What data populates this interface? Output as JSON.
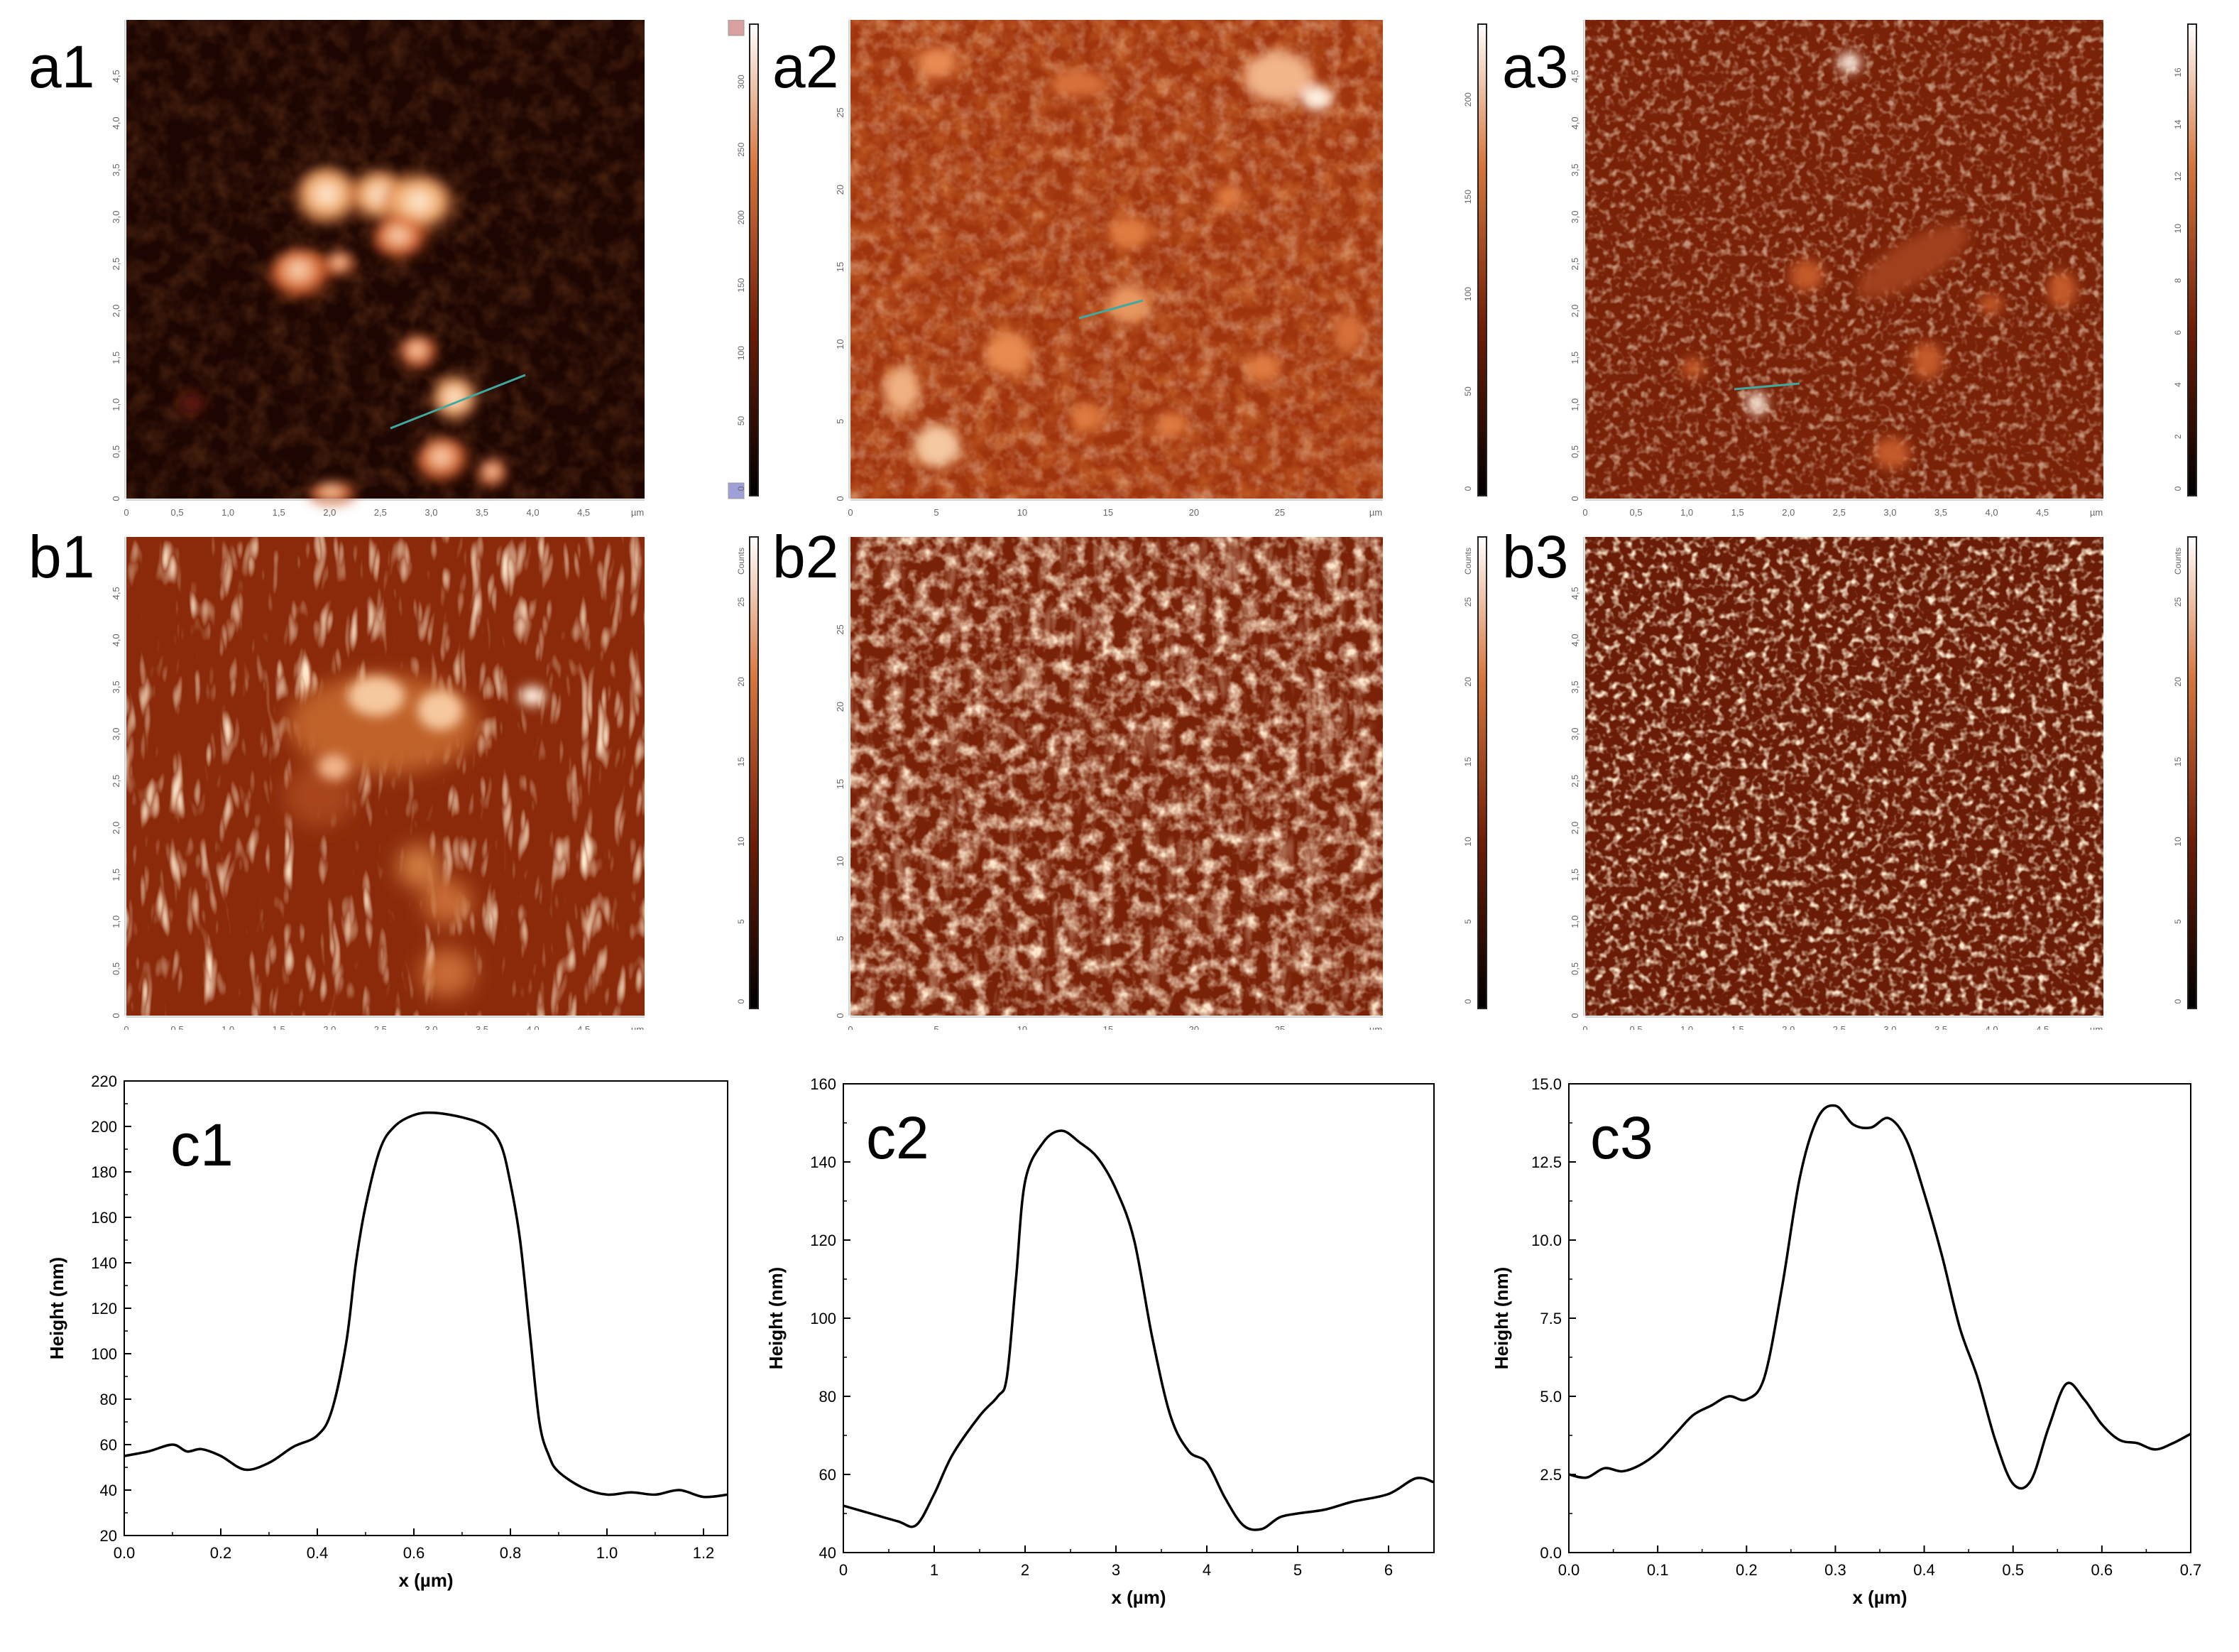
{
  "panels": {
    "a1": "a1",
    "a2": "a2",
    "a3": "a3",
    "b1": "b1",
    "b2": "b2",
    "b3": "b3",
    "c1": "c1",
    "c2": "c2",
    "c3": "c3"
  },
  "afm_axes": {
    "small_scan_ticks": [
      "0",
      "0,5",
      "1,0",
      "1,5",
      "2,0",
      "2,5",
      "3,0",
      "3,5",
      "4,0",
      "4,5"
    ],
    "large_scan_ticks": [
      "0",
      "5",
      "10",
      "15",
      "20",
      "25"
    ],
    "unit": "µm"
  },
  "colorbars": {
    "a1": [
      "0",
      "50",
      "100",
      "150",
      "200",
      "250",
      "300"
    ],
    "a2": [
      "0",
      "50",
      "100",
      "150",
      "200"
    ],
    "a3": [
      "0",
      "2",
      "4",
      "6",
      "8",
      "10",
      "12",
      "14",
      "16"
    ],
    "b": [
      "0",
      "5",
      "10",
      "15",
      "20",
      "25"
    ],
    "b_unit": "Counts"
  },
  "colors": {
    "afm_dark": "#1a0500",
    "afm_mid": "#8a2a0a",
    "afm_light": "#f2b07a",
    "afm_white": "#fff3e6",
    "profile_line": "#000000",
    "scan_line": "#3fa9a0"
  },
  "chart_data": [
    {
      "type": "line",
      "panel": "c1",
      "xlabel": "x (µm)",
      "ylabel": "Height (nm)",
      "xlim": [
        0.0,
        1.25
      ],
      "ylim": [
        20,
        220
      ],
      "xticks": [
        "0.0",
        "0.2",
        "0.4",
        "0.6",
        "0.8",
        "1.0",
        "1.2"
      ],
      "yticks": [
        "20",
        "40",
        "60",
        "80",
        "100",
        "120",
        "140",
        "160",
        "180",
        "200",
        "220"
      ],
      "x": [
        0.0,
        0.05,
        0.1,
        0.13,
        0.16,
        0.2,
        0.25,
        0.3,
        0.35,
        0.4,
        0.43,
        0.46,
        0.48,
        0.5,
        0.53,
        0.56,
        0.6,
        0.64,
        0.7,
        0.75,
        0.78,
        0.8,
        0.82,
        0.84,
        0.86,
        0.88,
        0.9,
        0.95,
        1.0,
        1.05,
        1.1,
        1.15,
        1.2,
        1.25
      ],
      "y": [
        55,
        57,
        60,
        57,
        58,
        55,
        49,
        52,
        59,
        64,
        75,
        105,
        140,
        165,
        190,
        200,
        205,
        206,
        204,
        200,
        192,
        175,
        150,
        110,
        70,
        55,
        48,
        41,
        38,
        39,
        38,
        40,
        37,
        38
      ]
    },
    {
      "type": "line",
      "panel": "c2",
      "xlabel": "x (µm)",
      "ylabel": "Height (nm)",
      "xlim": [
        0,
        6.5
      ],
      "ylim": [
        40,
        160
      ],
      "xticks": [
        "0",
        "1",
        "2",
        "3",
        "4",
        "5",
        "6"
      ],
      "yticks": [
        "40",
        "60",
        "80",
        "100",
        "120",
        "140",
        "160"
      ],
      "x": [
        0.0,
        0.3,
        0.6,
        0.8,
        1.0,
        1.2,
        1.5,
        1.7,
        1.8,
        1.9,
        2.0,
        2.2,
        2.4,
        2.6,
        2.8,
        3.0,
        3.2,
        3.4,
        3.6,
        3.8,
        4.0,
        4.2,
        4.4,
        4.6,
        4.8,
        5.0,
        5.3,
        5.6,
        6.0,
        6.3,
        6.5
      ],
      "y": [
        52,
        50,
        48,
        47,
        55,
        65,
        75,
        80,
        85,
        110,
        135,
        145,
        148,
        145,
        141,
        133,
        120,
        95,
        75,
        66,
        63,
        54,
        47,
        46,
        49,
        50,
        51,
        53,
        55,
        59,
        58
      ]
    },
    {
      "type": "line",
      "panel": "c3",
      "xlabel": "x (µm)",
      "ylabel": "Height (nm)",
      "xlim": [
        0.0,
        0.7
      ],
      "ylim": [
        0.0,
        15.0
      ],
      "xticks": [
        "0.0",
        "0.1",
        "0.2",
        "0.3",
        "0.4",
        "0.5",
        "0.6",
        "0.7"
      ],
      "yticks": [
        "0.0",
        "2.5",
        "5.0",
        "7.5",
        "10.0",
        "12.5",
        "15.0"
      ],
      "x": [
        0.0,
        0.02,
        0.04,
        0.06,
        0.08,
        0.1,
        0.12,
        0.14,
        0.16,
        0.18,
        0.2,
        0.22,
        0.24,
        0.26,
        0.28,
        0.3,
        0.32,
        0.34,
        0.36,
        0.38,
        0.4,
        0.42,
        0.44,
        0.46,
        0.48,
        0.5,
        0.52,
        0.54,
        0.56,
        0.58,
        0.6,
        0.62,
        0.64,
        0.66,
        0.68,
        0.7
      ],
      "y": [
        2.5,
        2.4,
        2.7,
        2.6,
        2.8,
        3.2,
        3.8,
        4.4,
        4.7,
        5.0,
        4.9,
        5.6,
        8.5,
        12.0,
        13.9,
        14.3,
        13.7,
        13.6,
        13.9,
        13.2,
        11.5,
        9.5,
        7.2,
        5.6,
        3.6,
        2.2,
        2.3,
        4.0,
        5.4,
        4.9,
        4.1,
        3.6,
        3.5,
        3.3,
        3.5,
        3.8
      ]
    }
  ]
}
